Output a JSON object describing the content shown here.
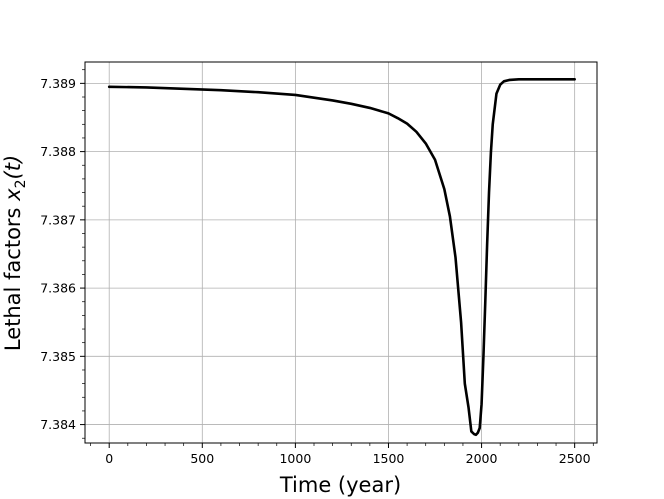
{
  "chart_data": {
    "type": "line",
    "xlabel": "Time (year)",
    "ylabel_text": "Lethal factors ",
    "ylabel_var": "x",
    "ylabel_sub": "2",
    "ylabel_arg": "(t)",
    "xlim": [
      -130,
      2620
    ],
    "ylim": [
      7.38373,
      7.389313
    ],
    "xticks": [
      0,
      500,
      1000,
      1500,
      2000,
      2500
    ],
    "xtick_labels": [
      "0",
      "500",
      "1000",
      "1500",
      "2000",
      "2500"
    ],
    "yticks": [
      7.384,
      7.385,
      7.386,
      7.387,
      7.388,
      7.389
    ],
    "ytick_labels": [
      "7.384",
      "7.385",
      "7.386",
      "7.387",
      "7.388",
      "7.389"
    ],
    "grid": true,
    "series": [
      {
        "color": "#000000",
        "x": [
          0,
          200,
          400,
          600,
          800,
          1000,
          1100,
          1200,
          1300,
          1400,
          1450,
          1500,
          1550,
          1600,
          1650,
          1700,
          1750,
          1800,
          1830,
          1860,
          1890,
          1910,
          1930,
          1945,
          1960,
          1970,
          1980,
          1990,
          2000,
          2010,
          2020,
          2030,
          2040,
          2050,
          2060,
          2080,
          2100,
          2120,
          2150,
          2200,
          2300,
          2400,
          2500
        ],
        "y": [
          7.38895,
          7.38894,
          7.38892,
          7.3889,
          7.38887,
          7.38883,
          7.38879,
          7.38875,
          7.3887,
          7.38864,
          7.3886,
          7.38856,
          7.38849,
          7.38841,
          7.38829,
          7.38812,
          7.38788,
          7.38745,
          7.38705,
          7.38645,
          7.3855,
          7.3846,
          7.38425,
          7.3839,
          7.38386,
          7.38385,
          7.38388,
          7.38395,
          7.3843,
          7.385,
          7.3858,
          7.38665,
          7.3874,
          7.38798,
          7.3884,
          7.38885,
          7.38898,
          7.38903,
          7.38905,
          7.38906,
          7.38906,
          7.38906,
          7.38906
        ]
      }
    ]
  }
}
